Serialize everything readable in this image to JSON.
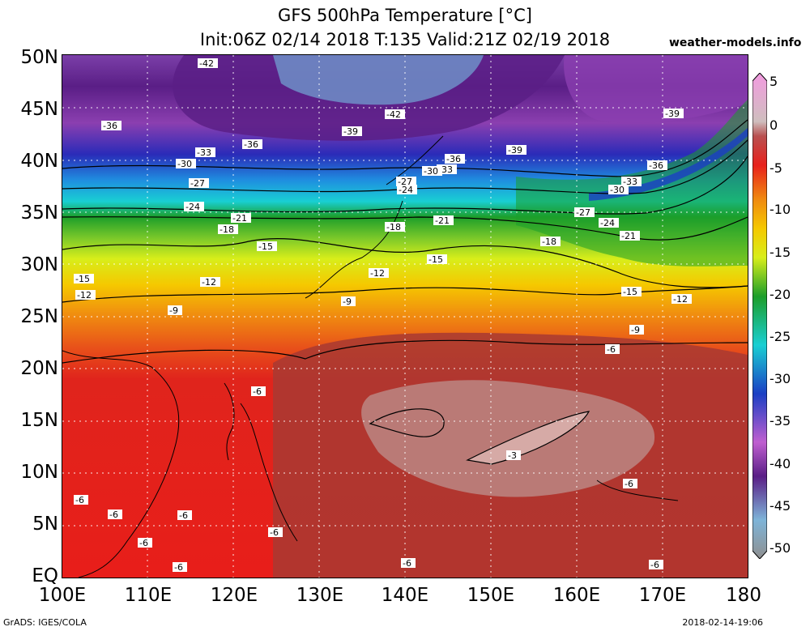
{
  "header": {
    "title_line1": "GFS 500hPa Temperature [°C]",
    "title_line2": "Init:06Z 02/14 2018 T:135 Valid:21Z 02/19 2018",
    "site": "weather-models.info"
  },
  "axes": {
    "lat_labels": [
      "50N",
      "45N",
      "40N",
      "35N",
      "30N",
      "25N",
      "20N",
      "15N",
      "10N",
      "5N",
      "EQ"
    ],
    "lon_labels": [
      "100E",
      "110E",
      "120E",
      "130E",
      "140E",
      "150E",
      "160E",
      "170E",
      "180"
    ]
  },
  "colorbar": {
    "labels": [
      "5",
      "0",
      "-5",
      "-10",
      "-15",
      "-20",
      "-25",
      "-30",
      "-35",
      "-40",
      "-45",
      "-50"
    ],
    "colors": {
      "5": "#f29ae0",
      "0": "#cfbebe",
      "-5": "#e8211c",
      "-10": "#f5c800",
      "-15": "#d8ee1a",
      "-20": "#1c9e2a",
      "-25": "#19cfd3",
      "-30": "#1b3fc4",
      "-35": "#bf5fd0",
      "-40": "#5a1e86",
      "-45": "#7eb4d8",
      "-50": "#8f8f8f"
    }
  },
  "contour_labels": [
    "-42",
    "-42",
    "-39",
    "-39",
    "-39",
    "-36",
    "-36",
    "-36",
    "-36",
    "-33",
    "-33",
    "-33",
    "-30",
    "-30",
    "-30",
    "-27",
    "-27",
    "-27",
    "-24",
    "-24",
    "-24",
    "-21",
    "-21",
    "-21",
    "-18",
    "-18",
    "-18",
    "-15",
    "-15",
    "-15",
    "-15",
    "-12",
    "-12",
    "-12",
    "-12",
    "-9",
    "-9",
    "-9",
    "-6",
    "-6",
    "-6",
    "-6",
    "-6",
    "-6",
    "-6",
    "-6",
    "-6",
    "-6",
    "-6",
    "-3"
  ],
  "footer": {
    "left": "GrADS: IGES/COLA",
    "right": "2018-02-14-19:06"
  }
}
